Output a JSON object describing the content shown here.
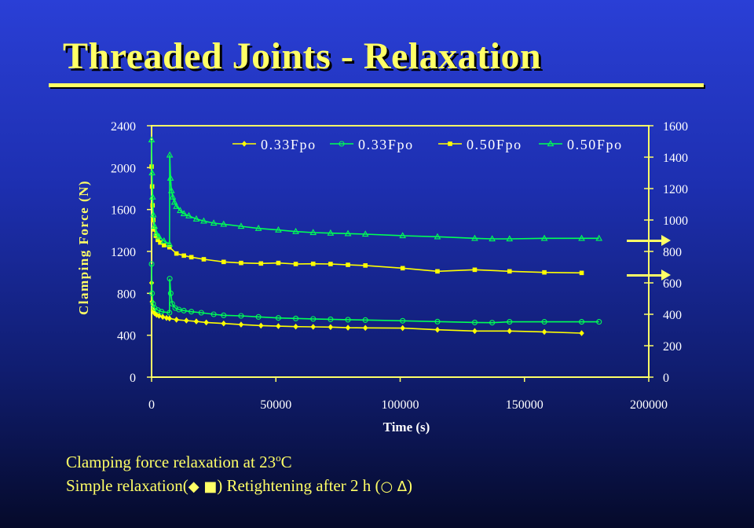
{
  "slide": {
    "title": "Threaded Joints - Relaxation",
    "caption_line1_prefix": "Clamping force relaxation at 23",
    "caption_line1_sup": "o",
    "caption_line1_suffix": "C",
    "caption_line2_a": "Simple relaxation(",
    "caption_line2_sym_a": "◆ ■",
    "caption_line2_b": ")  Retightening after 2 h (",
    "caption_line2_sym_b": "○ ∆",
    "caption_line2_c": ")"
  },
  "colors": {
    "background_top": "#2a3fd6",
    "background_bottom": "#050a2a",
    "title": "#ffff66",
    "axis_text": "#ffff66",
    "series_yellow": "#ffff00",
    "series_green": "#00ff55"
  },
  "chart_data": {
    "type": "line",
    "xlabel": "Time (s)",
    "ylabel": "Clamping Force (N)",
    "xlim": [
      0,
      200000
    ],
    "ylim_left": [
      0,
      2400
    ],
    "ylim_right": [
      0,
      1600
    ],
    "x_ticks": [
      "0",
      "50000",
      "100000",
      "150000",
      "200000"
    ],
    "y_left_ticks": [
      "0",
      "400",
      "800",
      "1200",
      "1600",
      "2000",
      "2400"
    ],
    "y_right_ticks": [
      "0",
      "200",
      "400",
      "600",
      "800",
      "1000",
      "1200",
      "1400",
      "1600"
    ],
    "legend_position": "top",
    "grid": false,
    "series": [
      {
        "name": "0.33Fpo",
        "marker": "diamond",
        "color": "#ffff00",
        "axis": "left",
        "points": [
          [
            0,
            900
          ],
          [
            200,
            720
          ],
          [
            600,
            640
          ],
          [
            1200,
            610
          ],
          [
            2000,
            595
          ],
          [
            3000,
            585
          ],
          [
            4500,
            575
          ],
          [
            6000,
            565
          ],
          [
            7200,
            560
          ],
          [
            10000,
            548
          ],
          [
            14000,
            540
          ],
          [
            18000,
            532
          ],
          [
            22000,
            522
          ],
          [
            29000,
            512
          ],
          [
            36000,
            502
          ],
          [
            44000,
            492
          ],
          [
            51000,
            487
          ],
          [
            58000,
            482
          ],
          [
            65000,
            480
          ],
          [
            72000,
            478
          ],
          [
            79000,
            472
          ],
          [
            86000,
            470
          ],
          [
            101000,
            468
          ],
          [
            115000,
            452
          ],
          [
            130000,
            440
          ],
          [
            144000,
            440
          ],
          [
            158000,
            432
          ],
          [
            173000,
            420
          ]
        ]
      },
      {
        "name": "0.33Fpo",
        "marker": "circle",
        "color": "#00ff55",
        "axis": "left",
        "points": [
          [
            0,
            1080
          ],
          [
            200,
            800
          ],
          [
            600,
            700
          ],
          [
            1200,
            660
          ],
          [
            2500,
            640
          ],
          [
            4000,
            625
          ],
          [
            7200,
            615
          ],
          [
            7300,
            940
          ],
          [
            7700,
            800
          ],
          [
            8300,
            700
          ],
          [
            9500,
            660
          ],
          [
            11000,
            645
          ],
          [
            13000,
            635
          ],
          [
            16000,
            625
          ],
          [
            20000,
            615
          ],
          [
            25000,
            600
          ],
          [
            29000,
            590
          ],
          [
            36000,
            585
          ],
          [
            43000,
            575
          ],
          [
            51000,
            565
          ],
          [
            58000,
            560
          ],
          [
            65000,
            556
          ],
          [
            72000,
            552
          ],
          [
            79000,
            548
          ],
          [
            86000,
            545
          ],
          [
            101000,
            538
          ],
          [
            115000,
            530
          ],
          [
            130000,
            522
          ],
          [
            137000,
            520
          ],
          [
            144000,
            528
          ],
          [
            158000,
            528
          ],
          [
            173000,
            528
          ],
          [
            180000,
            528
          ]
        ]
      },
      {
        "name": "0.50Fpo",
        "marker": "square",
        "color": "#ffff00",
        "axis": "left",
        "points": [
          [
            0,
            2010
          ],
          [
            200,
            1820
          ],
          [
            400,
            1640
          ],
          [
            700,
            1500
          ],
          [
            1100,
            1410
          ],
          [
            1700,
            1350
          ],
          [
            2500,
            1310
          ],
          [
            3500,
            1285
          ],
          [
            5000,
            1260
          ],
          [
            7200,
            1240
          ],
          [
            10000,
            1180
          ],
          [
            13000,
            1160
          ],
          [
            16000,
            1145
          ],
          [
            21000,
            1125
          ],
          [
            29000,
            1100
          ],
          [
            36000,
            1090
          ],
          [
            44000,
            1085
          ],
          [
            51000,
            1090
          ],
          [
            58000,
            1080
          ],
          [
            65000,
            1082
          ],
          [
            72000,
            1080
          ],
          [
            79000,
            1072
          ],
          [
            86000,
            1066
          ],
          [
            101000,
            1040
          ],
          [
            115000,
            1010
          ],
          [
            130000,
            1025
          ],
          [
            144000,
            1010
          ],
          [
            158000,
            1000
          ],
          [
            173000,
            995
          ]
        ]
      },
      {
        "name": "0.50Fpo",
        "marker": "triangle",
        "color": "#00ff55",
        "axis": "left",
        "points": [
          [
            0,
            2265
          ],
          [
            200,
            1950
          ],
          [
            400,
            1720
          ],
          [
            700,
            1550
          ],
          [
            1200,
            1440
          ],
          [
            2000,
            1370
          ],
          [
            3000,
            1340
          ],
          [
            5000,
            1300
          ],
          [
            7200,
            1270
          ],
          [
            7300,
            2120
          ],
          [
            7600,
            1900
          ],
          [
            8000,
            1780
          ],
          [
            8500,
            1720
          ],
          [
            9200,
            1670
          ],
          [
            10000,
            1630
          ],
          [
            11500,
            1590
          ],
          [
            13000,
            1560
          ],
          [
            15000,
            1540
          ],
          [
            18000,
            1510
          ],
          [
            21000,
            1490
          ],
          [
            25000,
            1470
          ],
          [
            29000,
            1460
          ],
          [
            36000,
            1440
          ],
          [
            43000,
            1420
          ],
          [
            51000,
            1405
          ],
          [
            58000,
            1390
          ],
          [
            65000,
            1380
          ],
          [
            72000,
            1375
          ],
          [
            79000,
            1370
          ],
          [
            86000,
            1365
          ],
          [
            101000,
            1350
          ],
          [
            115000,
            1340
          ],
          [
            130000,
            1325
          ],
          [
            137000,
            1320
          ],
          [
            144000,
            1320
          ],
          [
            158000,
            1325
          ],
          [
            173000,
            1325
          ],
          [
            180000,
            1325
          ]
        ]
      }
    ]
  }
}
